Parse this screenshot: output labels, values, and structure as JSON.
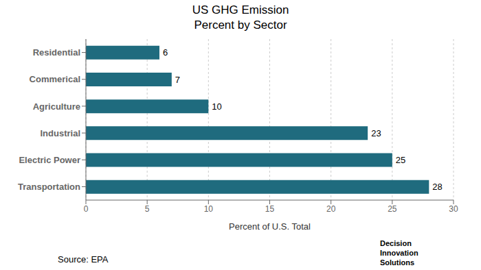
{
  "chart_data": {
    "type": "bar",
    "orientation": "horizontal",
    "title": "US GHG Emission",
    "subtitle": "Percent by Sector",
    "categories": [
      "Residential",
      "Commerical",
      "Agriculture",
      "Industrial",
      "Electric Power",
      "Transportation"
    ],
    "values": [
      6,
      7,
      10,
      23,
      25,
      28
    ],
    "color": "#1f6b7e",
    "xlabel": "Percent of U.S. Total",
    "xlim": [
      0,
      30
    ],
    "xticks": [
      0,
      5,
      10,
      15,
      20,
      25,
      30
    ],
    "grid": true,
    "data_labels": true,
    "annotations": [
      "Source: EPA",
      "Decision\nInnovation\nSolutions"
    ]
  }
}
